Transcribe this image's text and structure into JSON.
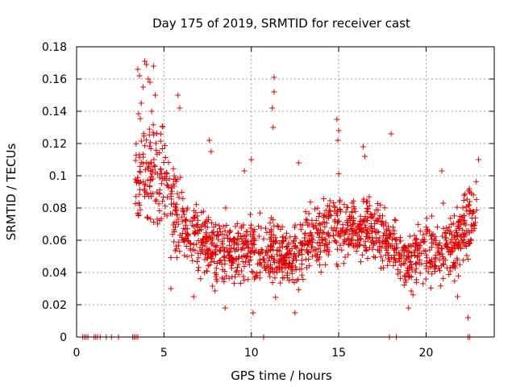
{
  "chart_data": {
    "type": "scatter",
    "title": "Day 175 of 2019, SRMTID for receiver cast",
    "xlabel": "GPS time / hours",
    "ylabel": "SRMTID / TECUs",
    "xlim": [
      0,
      23.9
    ],
    "ylim": [
      0,
      0.18
    ],
    "xticks": [
      0,
      5,
      10,
      15,
      20
    ],
    "xtick_labels": [
      "0",
      "5",
      "10",
      "15",
      "20"
    ],
    "yticks": [
      0,
      0.02,
      0.04,
      0.06,
      0.08,
      0.1,
      0.12,
      0.14,
      0.16,
      0.18
    ],
    "ytick_labels": [
      "0",
      "0.02",
      "0.04",
      "0.06",
      "0.08",
      "0.1",
      "0.12",
      "0.14",
      "0.16",
      "0.18"
    ],
    "grid": true,
    "marker": "+",
    "color": "#e00000",
    "zero_points_x": [
      0.35,
      0.45,
      0.55,
      0.65,
      1.0,
      1.1,
      1.2,
      1.35,
      1.7,
      2.0,
      2.4,
      3.2,
      3.3,
      3.4,
      3.5,
      10.7,
      17.9,
      18.3,
      22.4,
      22.5
    ],
    "envelope": [
      {
        "x": 3.4,
        "median": 0.1,
        "spread": 0.03
      },
      {
        "x": 4.0,
        "median": 0.105,
        "spread": 0.032
      },
      {
        "x": 5.0,
        "median": 0.095,
        "spread": 0.03
      },
      {
        "x": 6.0,
        "median": 0.07,
        "spread": 0.022
      },
      {
        "x": 7.0,
        "median": 0.06,
        "spread": 0.02
      },
      {
        "x": 8.0,
        "median": 0.055,
        "spread": 0.018
      },
      {
        "x": 9.0,
        "median": 0.052,
        "spread": 0.018
      },
      {
        "x": 10.0,
        "median": 0.055,
        "spread": 0.018
      },
      {
        "x": 11.0,
        "median": 0.055,
        "spread": 0.018
      },
      {
        "x": 12.0,
        "median": 0.05,
        "spread": 0.016
      },
      {
        "x": 13.0,
        "median": 0.055,
        "spread": 0.017
      },
      {
        "x": 14.0,
        "median": 0.065,
        "spread": 0.02
      },
      {
        "x": 15.0,
        "median": 0.07,
        "spread": 0.022
      },
      {
        "x": 16.0,
        "median": 0.065,
        "spread": 0.02
      },
      {
        "x": 17.0,
        "median": 0.068,
        "spread": 0.02
      },
      {
        "x": 18.0,
        "median": 0.06,
        "spread": 0.019
      },
      {
        "x": 19.0,
        "median": 0.045,
        "spread": 0.016
      },
      {
        "x": 20.0,
        "median": 0.055,
        "spread": 0.018
      },
      {
        "x": 21.0,
        "median": 0.055,
        "spread": 0.018
      },
      {
        "x": 22.0,
        "median": 0.06,
        "spread": 0.02
      },
      {
        "x": 22.8,
        "median": 0.08,
        "spread": 0.022
      }
    ],
    "dense_x_range": [
      3.35,
      22.9
    ],
    "dense_point_count": 1500,
    "outliers": [
      {
        "x": 3.5,
        "y": 0.166
      },
      {
        "x": 3.6,
        "y": 0.162
      },
      {
        "x": 3.9,
        "y": 0.171
      },
      {
        "x": 4.0,
        "y": 0.169
      },
      {
        "x": 4.1,
        "y": 0.16
      },
      {
        "x": 4.4,
        "y": 0.168
      },
      {
        "x": 4.2,
        "y": 0.158
      },
      {
        "x": 3.8,
        "y": 0.155
      },
      {
        "x": 4.5,
        "y": 0.15
      },
      {
        "x": 3.7,
        "y": 0.145
      },
      {
        "x": 4.3,
        "y": 0.14
      },
      {
        "x": 5.8,
        "y": 0.15
      },
      {
        "x": 5.9,
        "y": 0.142
      },
      {
        "x": 11.3,
        "y": 0.161
      },
      {
        "x": 11.3,
        "y": 0.152
      },
      {
        "x": 11.2,
        "y": 0.142
      },
      {
        "x": 11.25,
        "y": 0.13
      },
      {
        "x": 14.9,
        "y": 0.135
      },
      {
        "x": 15.0,
        "y": 0.128
      },
      {
        "x": 14.95,
        "y": 0.122
      },
      {
        "x": 18.0,
        "y": 0.126
      },
      {
        "x": 16.4,
        "y": 0.118
      },
      {
        "x": 16.5,
        "y": 0.112
      },
      {
        "x": 7.6,
        "y": 0.122
      },
      {
        "x": 7.7,
        "y": 0.115
      },
      {
        "x": 10.0,
        "y": 0.11
      },
      {
        "x": 12.7,
        "y": 0.108
      },
      {
        "x": 9.6,
        "y": 0.103
      },
      {
        "x": 20.9,
        "y": 0.103
      },
      {
        "x": 23.0,
        "y": 0.11
      },
      {
        "x": 8.5,
        "y": 0.018
      },
      {
        "x": 10.1,
        "y": 0.015
      },
      {
        "x": 12.5,
        "y": 0.015
      },
      {
        "x": 19.0,
        "y": 0.018
      },
      {
        "x": 22.4,
        "y": 0.012
      },
      {
        "x": 5.4,
        "y": 0.03
      },
      {
        "x": 6.7,
        "y": 0.025
      },
      {
        "x": 21.8,
        "y": 0.025
      }
    ]
  }
}
